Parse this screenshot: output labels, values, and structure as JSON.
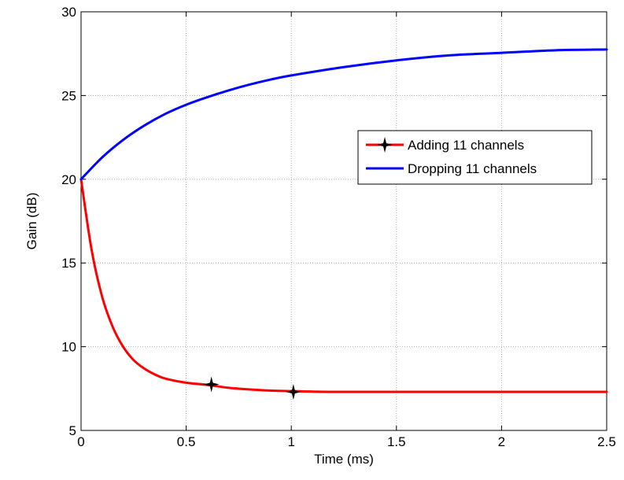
{
  "chart_data": {
    "type": "line",
    "xlabel": "Time (ms)",
    "ylabel": "Gain (dB)",
    "xlim": [
      0,
      2.5
    ],
    "ylim": [
      5,
      30
    ],
    "xticks": [
      0,
      0.5,
      1,
      1.5,
      2,
      2.5
    ],
    "xtick_labels": [
      "0",
      "0.5",
      "1",
      "1.5",
      "2",
      "2.5"
    ],
    "yticks": [
      5,
      10,
      15,
      20,
      25,
      30
    ],
    "ytick_labels": [
      "5",
      "10",
      "15",
      "20",
      "25",
      "30"
    ],
    "grid": true,
    "legend_position": "right",
    "series": [
      {
        "name": "Adding 11 channels",
        "color": "#ff0000",
        "marker": "star",
        "x": [
          0,
          0.05,
          0.1,
          0.15,
          0.2,
          0.25,
          0.3,
          0.35,
          0.4,
          0.5,
          0.6,
          0.7,
          0.8,
          0.9,
          1.0,
          1.1,
          1.2,
          1.5,
          2.0,
          2.5
        ],
        "y": [
          20,
          15.8,
          13.0,
          11.2,
          10.0,
          9.2,
          8.7,
          8.35,
          8.1,
          7.85,
          7.72,
          7.55,
          7.45,
          7.38,
          7.35,
          7.32,
          7.3,
          7.3,
          7.3,
          7.3
        ],
        "marker_points": [
          [
            0.62,
            7.75
          ],
          [
            1.01,
            7.3
          ]
        ]
      },
      {
        "name": "Dropping 11 channels",
        "color": "#0000ff",
        "x": [
          0,
          0.1,
          0.2,
          0.3,
          0.4,
          0.5,
          0.6,
          0.7,
          0.8,
          0.9,
          1.0,
          1.25,
          1.5,
          1.75,
          2.0,
          2.25,
          2.5
        ],
        "y": [
          20,
          21.3,
          22.35,
          23.2,
          23.9,
          24.45,
          24.9,
          25.3,
          25.65,
          25.95,
          26.2,
          26.7,
          27.1,
          27.4,
          27.55,
          27.7,
          27.75
        ]
      }
    ]
  }
}
